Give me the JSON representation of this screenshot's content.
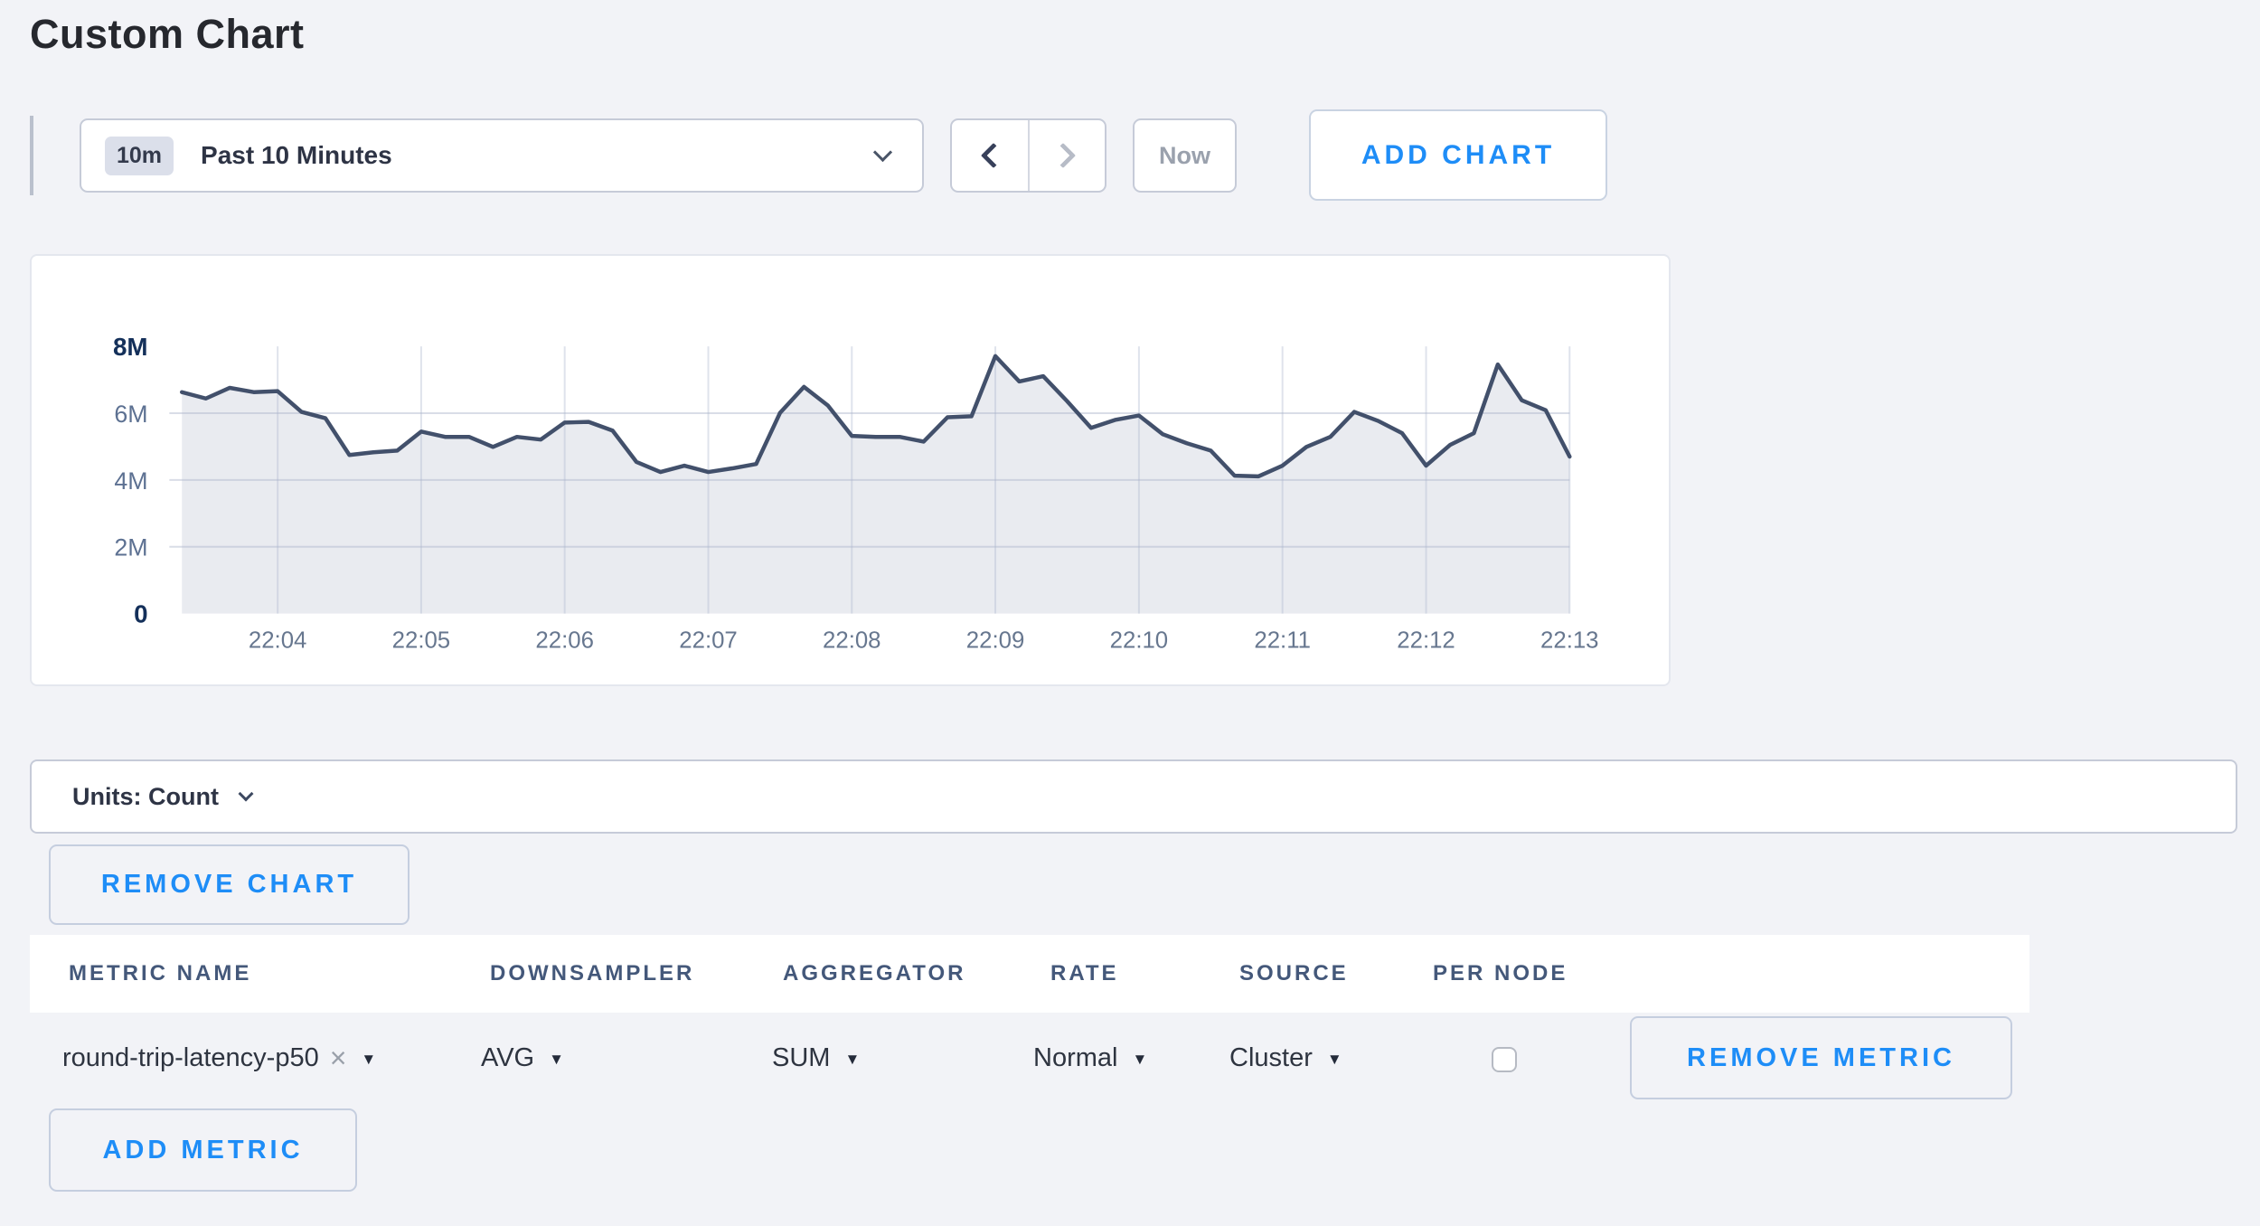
{
  "page": {
    "title": "Custom Chart"
  },
  "toolbar": {
    "time_range": {
      "badge": "10m",
      "label": "Past 10 Minutes"
    },
    "now_label": "Now",
    "add_chart_label": "ADD CHART"
  },
  "units_bar": {
    "label": "Units: Count"
  },
  "remove_chart_label": "REMOVE CHART",
  "icons": {
    "caret_down": "▼",
    "remove_x": "×"
  },
  "metrics_table": {
    "columns": [
      "METRIC NAME",
      "DOWNSAMPLER",
      "AGGREGATOR",
      "RATE",
      "SOURCE",
      "PER NODE"
    ],
    "row": {
      "metric_name": "round-trip-latency-p50",
      "downsampler": "AVG",
      "aggregator": "SUM",
      "rate": "Normal",
      "source": "Cluster",
      "per_node_checked": false,
      "remove_label": "REMOVE METRIC"
    },
    "add_metric_label": "ADD METRIC"
  },
  "colors": {
    "accent_blue": "#1e8df7",
    "chart_line": "#42506b",
    "chart_fill": "#e9ebf0",
    "page_background": "#f2f3f7"
  },
  "chart_data": {
    "type": "area",
    "title": "",
    "xlabel": "",
    "ylabel": "Count",
    "legend": "off",
    "grid": "on",
    "ylim": [
      0,
      8000000
    ],
    "y_tick_labels": [
      "0",
      "2M",
      "4M",
      "6M",
      "8M"
    ],
    "y_tick_values": [
      0,
      2000000,
      4000000,
      6000000,
      8000000
    ],
    "x_tick_labels": [
      "22:04",
      "22:05",
      "22:06",
      "22:07",
      "22:08",
      "22:09",
      "22:10",
      "22:11",
      "22:12",
      "22:13"
    ],
    "first_tick_index": 4,
    "points_per_tick": 6,
    "series": [
      {
        "name": "round-trip-latency-p50",
        "values": [
          6630000,
          6440000,
          6760000,
          6630000,
          6660000,
          6040000,
          5850000,
          4750000,
          4830000,
          4880000,
          5450000,
          5290000,
          5290000,
          4990000,
          5290000,
          5210000,
          5720000,
          5740000,
          5480000,
          4540000,
          4240000,
          4430000,
          4240000,
          4350000,
          4480000,
          6010000,
          6790000,
          6230000,
          5320000,
          5290000,
          5290000,
          5150000,
          5880000,
          5910000,
          7710000,
          6950000,
          7110000,
          6360000,
          5560000,
          5800000,
          5930000,
          5370000,
          5100000,
          4880000,
          4130000,
          4110000,
          4430000,
          4990000,
          5290000,
          6040000,
          5770000,
          5400000,
          4430000,
          5050000,
          5400000,
          7460000,
          6390000,
          6090000,
          4700000
        ]
      }
    ]
  }
}
